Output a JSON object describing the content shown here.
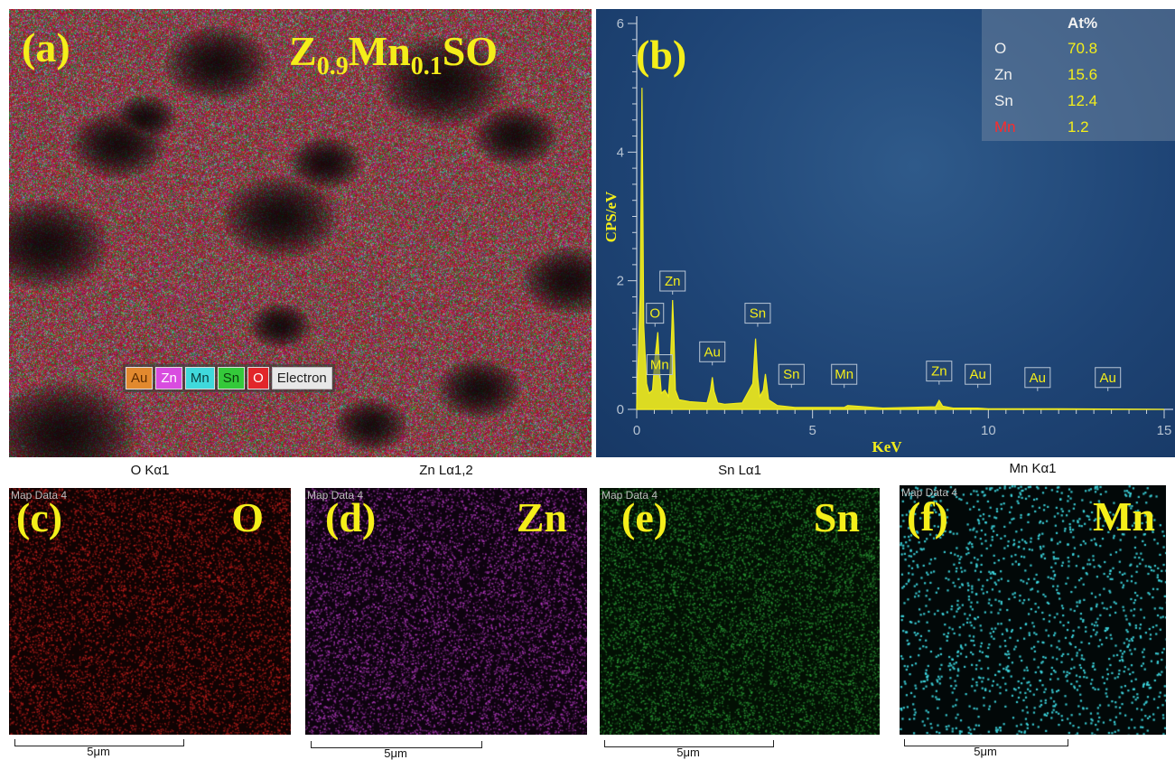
{
  "panel_a": {
    "label": "(a)",
    "formula_parts": [
      "Z",
      "0.9",
      "Mn",
      "0.1",
      "SO"
    ],
    "legend": [
      {
        "text": "Au",
        "color": "#e2892e"
      },
      {
        "text": "Zn",
        "color": "#d94ce0"
      },
      {
        "text": "Mn",
        "color": "#3fd9dc"
      },
      {
        "text": "Sn",
        "color": "#34c93a"
      },
      {
        "text": "O",
        "color": "#e2262a"
      },
      {
        "text": "Electron",
        "color": "#e8e8e8"
      }
    ]
  },
  "panel_b": {
    "label": "(b)",
    "table_header": "At%",
    "table_rows": [
      {
        "element": "O",
        "value": "70.8"
      },
      {
        "element": "Zn",
        "value": "15.6"
      },
      {
        "element": "Sn",
        "value": "12.4"
      },
      {
        "element": "Mn",
        "value": "1.2"
      }
    ]
  },
  "chart_data": {
    "type": "line",
    "xlabel": "KeV",
    "ylabel": "CPS/eV",
    "xlim": [
      0,
      15
    ],
    "ylim": [
      0,
      6
    ],
    "x_ticks": [
      "0",
      "5",
      "10",
      "15"
    ],
    "y_ticks": [
      "0",
      "2",
      "4",
      "6"
    ],
    "series": [
      {
        "x": [
          0.0,
          0.1,
          0.15,
          0.2,
          0.28,
          0.35,
          0.45,
          0.52,
          0.6,
          0.65,
          0.7,
          0.8,
          0.9,
          0.95,
          1.0,
          1.02,
          1.05,
          1.1,
          1.2,
          1.5,
          2.0,
          2.1,
          2.15,
          2.2,
          2.3,
          2.5,
          3.0,
          3.3,
          3.38,
          3.44,
          3.5,
          3.6,
          3.66,
          3.75,
          4.0,
          4.5,
          5.0,
          5.9,
          6.0,
          7.0,
          8.5,
          8.6,
          8.7,
          9.0,
          9.7,
          10.0,
          12.0,
          15.0
        ],
        "y": [
          0.05,
          1.8,
          5.0,
          1.3,
          0.4,
          0.25,
          0.3,
          0.8,
          1.2,
          0.6,
          0.25,
          0.3,
          0.2,
          0.6,
          1.3,
          1.7,
          1.3,
          0.3,
          0.15,
          0.12,
          0.1,
          0.3,
          0.5,
          0.28,
          0.1,
          0.08,
          0.1,
          0.4,
          1.1,
          0.5,
          0.2,
          0.3,
          0.55,
          0.15,
          0.06,
          0.03,
          0.03,
          0.03,
          0.06,
          0.02,
          0.04,
          0.14,
          0.05,
          0.02,
          0.02,
          0.01,
          0.01,
          0.0
        ]
      }
    ],
    "peak_labels": [
      {
        "text": "O",
        "x": 0.52,
        "y": 1.2
      },
      {
        "text": "Zn",
        "x": 1.02,
        "y": 1.7
      },
      {
        "text": "Mn",
        "x": 0.65,
        "y": 0.4
      },
      {
        "text": "Au",
        "x": 2.15,
        "y": 0.6
      },
      {
        "text": "Sn",
        "x": 3.44,
        "y": 1.2
      },
      {
        "text": "Sn",
        "x": 4.4,
        "y": 0.25
      },
      {
        "text": "Mn",
        "x": 5.9,
        "y": 0.25
      },
      {
        "text": "Zn",
        "x": 8.6,
        "y": 0.3
      },
      {
        "text": "Au",
        "x": 9.7,
        "y": 0.25
      },
      {
        "text": "Au",
        "x": 11.4,
        "y": 0.2
      },
      {
        "text": "Au",
        "x": 13.4,
        "y": 0.2
      }
    ]
  },
  "maps": [
    {
      "label": "(c)",
      "caption": "O Kα1",
      "element": "O",
      "map_label": "",
      "color": "#d6221f",
      "scale": "5μm"
    },
    {
      "label": "(d)",
      "caption": "Zn Lα1,2",
      "element": "Zn",
      "map_label": "Map Data 4",
      "color": "#c23fd0",
      "scale": "5μm"
    },
    {
      "label": "(e)",
      "caption": "Sn Lα1",
      "element": "Sn",
      "map_label": "Map Data 4",
      "color": "#2fa83a",
      "scale": "5μm"
    },
    {
      "label": "(f)",
      "caption": "Mn Kα1",
      "element": "Mn",
      "map_label": "Map Data 4",
      "color": "#3fdde6",
      "scale": "5μm"
    }
  ],
  "map_top_label": "Map Data 4"
}
